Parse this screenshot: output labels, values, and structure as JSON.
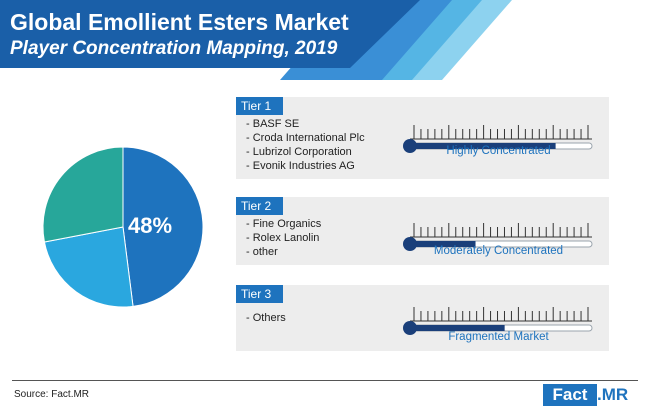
{
  "header": {
    "title": "Global Emollient Esters Market",
    "subtitle": "Player Concentration Mapping, 2019"
  },
  "colors": {
    "banner": "#1a5fa8",
    "stripe_1": "#3a8fd6",
    "stripe_2": "#55b5e4",
    "stripe_3": "#8dd2ef",
    "accent_blue": "#1e73be",
    "pie_teal": "#27a79a",
    "pie_light_blue": "#2aa7df",
    "tier_bg": "#ededed",
    "gauge_fill": "#1a3f7a"
  },
  "chart_data": {
    "type": "pie",
    "slices": [
      {
        "value": 48,
        "color": "#1e73be",
        "label": "48%"
      },
      {
        "value": 24,
        "color": "#2aa7df"
      },
      {
        "value": 28,
        "color": "#27a79a"
      }
    ]
  },
  "tiers": [
    {
      "label": "Tier 1",
      "players": [
        "BASF SE",
        "Croda International Plc",
        "Lubrizol Corporation",
        "Evonik Industries AG"
      ],
      "gauge_label": "Highly Concentrated",
      "gauge_level": 0.8
    },
    {
      "label": "Tier 2",
      "players": [
        "Fine Organics",
        "Rolex Lanolin",
        "other"
      ],
      "gauge_label": "Moderately Concentrated",
      "gauge_level": 0.36
    },
    {
      "label": "Tier 3",
      "players": [
        "Others"
      ],
      "gauge_label": "Fragmented Market",
      "gauge_level": 0.52
    }
  ],
  "footer": {
    "source": "Source: Fact.MR",
    "logo_part1": "Fact",
    "logo_part2": ".MR"
  }
}
